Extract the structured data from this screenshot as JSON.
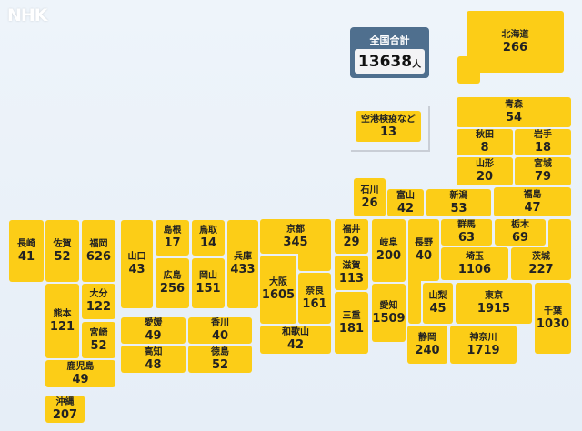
{
  "brand": {
    "logo": "NHK"
  },
  "total": {
    "label": "全国合計",
    "value": "13638",
    "unit": "人"
  },
  "airport": {
    "name": "空港検疫など",
    "value": "13"
  },
  "colors": {
    "tile": "#fccd17",
    "total_box": "#4f6f8e",
    "background": "#e8f0f8"
  },
  "prefectures": [
    {
      "name": "北海道",
      "value": "266"
    },
    {
      "name": "青森",
      "value": "54"
    },
    {
      "name": "秋田",
      "value": "8"
    },
    {
      "name": "岩手",
      "value": "18"
    },
    {
      "name": "山形",
      "value": "20"
    },
    {
      "name": "宮城",
      "value": "79"
    },
    {
      "name": "石川",
      "value": "26"
    },
    {
      "name": "富山",
      "value": "42"
    },
    {
      "name": "新潟",
      "value": "53"
    },
    {
      "name": "福島",
      "value": "47"
    },
    {
      "name": "京都",
      "value": "345"
    },
    {
      "name": "大阪",
      "value": "1605"
    },
    {
      "name": "奈良",
      "value": "161"
    },
    {
      "name": "和歌山",
      "value": "42"
    },
    {
      "name": "福井",
      "value": "29"
    },
    {
      "name": "滋賀",
      "value": "113"
    },
    {
      "name": "三重",
      "value": "181"
    },
    {
      "name": "岐阜",
      "value": "200"
    },
    {
      "name": "愛知",
      "value": "1509"
    },
    {
      "name": "長野",
      "value": "40"
    },
    {
      "name": "群馬",
      "value": "63"
    },
    {
      "name": "栃木",
      "value": "69"
    },
    {
      "name": "埼玉",
      "value": "1106"
    },
    {
      "name": "茨城",
      "value": "227"
    },
    {
      "name": "山梨",
      "value": "45"
    },
    {
      "name": "東京",
      "value": "1915"
    },
    {
      "name": "千葉",
      "value": "1030"
    },
    {
      "name": "静岡",
      "value": "240"
    },
    {
      "name": "神奈川",
      "value": "1719"
    },
    {
      "name": "長崎",
      "value": "41"
    },
    {
      "name": "佐賀",
      "value": "52"
    },
    {
      "name": "福岡",
      "value": "626"
    },
    {
      "name": "熊本",
      "value": "121"
    },
    {
      "name": "大分",
      "value": "122"
    },
    {
      "name": "宮崎",
      "value": "52"
    },
    {
      "name": "鹿児島",
      "value": "49"
    },
    {
      "name": "沖縄",
      "value": "207"
    },
    {
      "name": "山口",
      "value": "43"
    },
    {
      "name": "島根",
      "value": "17"
    },
    {
      "name": "鳥取",
      "value": "14"
    },
    {
      "name": "広島",
      "value": "256"
    },
    {
      "name": "岡山",
      "value": "151"
    },
    {
      "name": "兵庫",
      "value": "433"
    },
    {
      "name": "愛媛",
      "value": "49"
    },
    {
      "name": "香川",
      "value": "40"
    },
    {
      "name": "高知",
      "value": "48"
    },
    {
      "name": "徳島",
      "value": "52"
    }
  ]
}
